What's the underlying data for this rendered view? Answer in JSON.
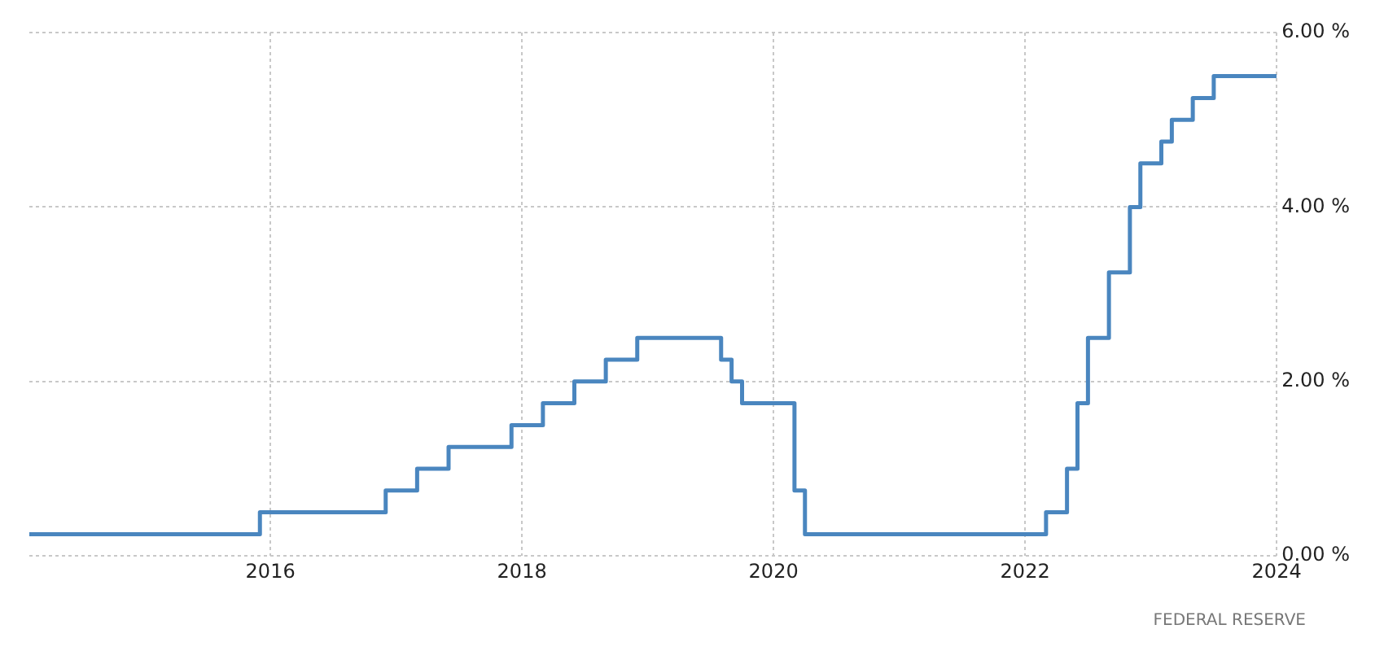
{
  "chart_data": {
    "type": "step",
    "x": [
      "2014-02",
      "2015-12",
      "2016-12",
      "2017-03",
      "2017-06",
      "2017-12",
      "2018-03",
      "2018-06",
      "2018-09",
      "2018-12",
      "2019-08",
      "2019-09",
      "2019-10",
      "2020-03",
      "2020-04",
      "2022-03",
      "2022-05",
      "2022-06",
      "2022-07",
      "2022-09",
      "2022-11",
      "2022-12",
      "2023-02",
      "2023-03",
      "2023-05",
      "2023-07",
      "2024-01"
    ],
    "series": [
      {
        "color": "#4a86bf",
        "values": [
          0.25,
          0.5,
          0.75,
          1.0,
          1.25,
          1.5,
          1.75,
          2.0,
          2.25,
          2.5,
          2.25,
          2.0,
          1.75,
          0.75,
          0.25,
          0.5,
          1.0,
          1.75,
          2.5,
          3.25,
          4.0,
          4.5,
          4.75,
          5.0,
          5.25,
          5.5,
          5.5
        ]
      }
    ],
    "xlim": [
      "2014-02",
      "2024"
    ],
    "xticks": [
      "2016",
      "2018",
      "2020",
      "2022",
      "2024"
    ],
    "ylim": [
      0,
      6
    ],
    "yticks": [
      {
        "value": 0,
        "label": "0.00 %"
      },
      {
        "value": 2,
        "label": "2.00 %"
      },
      {
        "value": 4,
        "label": "4.00 %"
      },
      {
        "value": 6,
        "label": "6.00 %"
      }
    ],
    "grid": true,
    "legend": false,
    "annotations": [
      "FEDERAL RESERVE"
    ]
  }
}
